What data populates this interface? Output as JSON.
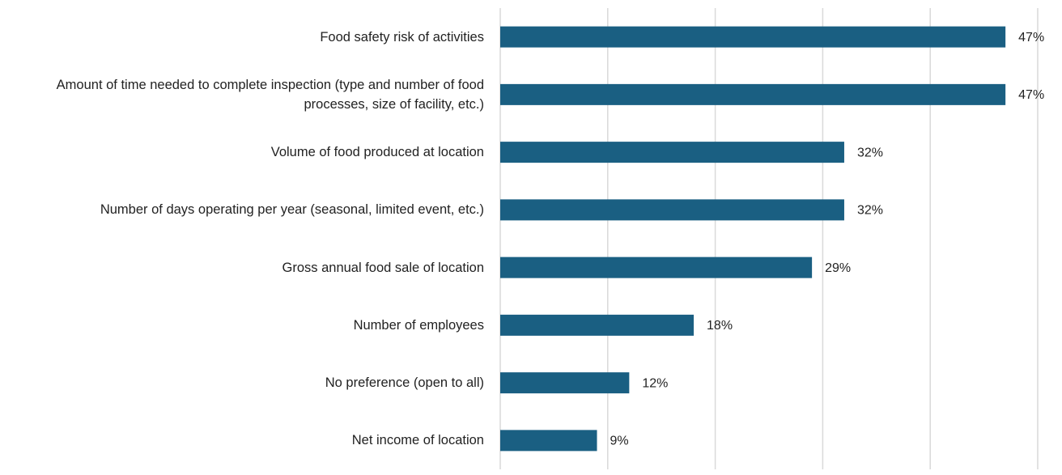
{
  "chart_data": {
    "type": "barh",
    "categories": [
      "Food safety risk of activities",
      "Amount of time needed to complete inspection (type and number of food processes, size of facility, etc.)",
      "Volume of food produced at location",
      "Number of days operating per year (seasonal, limited event, etc.)",
      "Gross annual food sale of location",
      "Number of employees",
      "No preference (open to all)",
      "Net income of location"
    ],
    "values": [
      47,
      47,
      32,
      32,
      29,
      18,
      12,
      9
    ],
    "value_labels": [
      "47%",
      "47%",
      "32%",
      "32%",
      "29%",
      "18%",
      "12%",
      "9%"
    ],
    "color": "#1a5f82",
    "xlim": [
      0,
      50
    ],
    "xticks": [
      0,
      10,
      20,
      30,
      40,
      50
    ],
    "grid": true
  }
}
